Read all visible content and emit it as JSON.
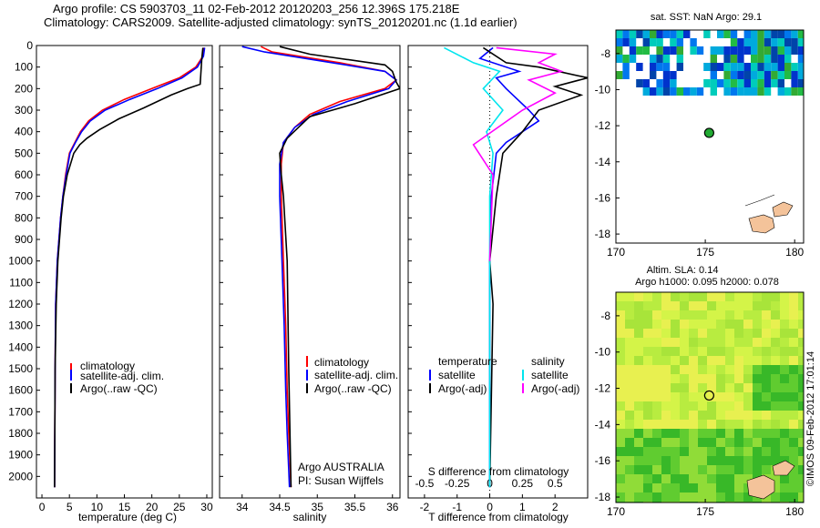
{
  "header": {
    "line1": "Argo profile: CS 5903703_11 02-Feb-2012 20120203_256 12.396S 175.218E",
    "line2": "Climatology: CARS2009. Satellite-adjusted climatology: synTS_20120201.nc (1.1d earlier)"
  },
  "colors": {
    "climatology": "#ff0000",
    "satellite": "#0000ff",
    "argo": "#000000",
    "salinity_satellite": "#00e5ee",
    "salinity_argo": "#ff00ff"
  },
  "labels": {
    "argo_australia": "Argo AUSTRALIA",
    "pi": "PI: Susan Wijffels",
    "legend_temperature": "temperature",
    "legend_salinity": "salinity",
    "sst_title": "sat. SST: NaN Argo: 29.1",
    "sla_title1": "Altim. SLA: 0.14",
    "sla_title2": "Argo h1000: 0.095 h2000: 0.078",
    "imos": "©IMOS 09-Feb-2012 17:01:14"
  },
  "chart_data": [
    {
      "type": "line",
      "xlabel": "temperature (deg C)",
      "xlim": [
        -1,
        31
      ],
      "xticks": [
        "0",
        "5",
        "10",
        "15",
        "20",
        "25",
        "30"
      ],
      "xtick_values": [
        0,
        5,
        10,
        15,
        20,
        25,
        30
      ],
      "ylim": [
        2100,
        0
      ],
      "yticks": [
        "0",
        "100",
        "200",
        "300",
        "400",
        "500",
        "600",
        "700",
        "800",
        "900",
        "1000",
        "1100",
        "1200",
        "1300",
        "1400",
        "1500",
        "1600",
        "1700",
        "1800",
        "1900",
        "2000"
      ],
      "ytick_values": [
        0,
        100,
        200,
        300,
        400,
        500,
        600,
        700,
        800,
        900,
        1000,
        1100,
        1200,
        1300,
        1400,
        1500,
        1600,
        1700,
        1800,
        1900,
        2000
      ],
      "legend": [
        "climatology",
        "satellite-adj. clim.",
        "Argo(..raw -QC)"
      ],
      "series": [
        {
          "name": "climatology",
          "color_key": "climatology",
          "x": [
            29.5,
            29.3,
            28,
            25,
            20,
            15,
            11,
            8.5,
            7,
            6,
            5,
            4.3,
            3.8,
            3.4,
            3.1,
            2.8,
            2.5,
            2.4,
            2.3
          ],
          "y": [
            10,
            50,
            100,
            150,
            200,
            250,
            300,
            350,
            400,
            450,
            500,
            600,
            700,
            800,
            900,
            1000,
            1200,
            1500,
            2050
          ]
        },
        {
          "name": "satellite-adj. clim.",
          "color_key": "satellite",
          "x": [
            29.6,
            29.4,
            28.3,
            25.5,
            21,
            16,
            11.5,
            8.8,
            7.2,
            6.1,
            5.1,
            4.4,
            3.8,
            3.4,
            3.1,
            2.8,
            2.5,
            2.4,
            2.3
          ],
          "y": [
            10,
            50,
            100,
            150,
            200,
            250,
            300,
            350,
            400,
            450,
            500,
            600,
            700,
            800,
            900,
            1000,
            1200,
            1500,
            2050
          ]
        },
        {
          "name": "Argo(..raw -QC)",
          "color_key": "argo",
          "x": [
            29.3,
            29.1,
            28.8,
            26.5,
            23.5,
            18.5,
            14,
            10.5,
            8.2,
            6.9,
            5.8,
            4.6,
            3.9,
            3.5,
            3.2,
            2.9,
            2.6,
            2.4,
            2.3
          ],
          "y": [
            10,
            60,
            180,
            200,
            230,
            290,
            340,
            390,
            430,
            460,
            500,
            600,
            700,
            800,
            900,
            1000,
            1200,
            1500,
            2050
          ]
        }
      ]
    },
    {
      "type": "line",
      "xlabel": "salinity",
      "xlim": [
        33.7,
        36.1
      ],
      "xticks": [
        "34",
        "34.5",
        "35",
        "35.5",
        "36"
      ],
      "xtick_values": [
        34,
        34.5,
        35,
        35.5,
        36
      ],
      "ylim": [
        2100,
        0
      ],
      "legend": [
        "climatology",
        "satellite-adj. clim.",
        "Argo(..raw -QC)"
      ],
      "series": [
        {
          "name": "climatology",
          "color_key": "climatology",
          "x": [
            34.25,
            34.4,
            35.3,
            35.9,
            36.05,
            35.9,
            35.3,
            34.9,
            34.7,
            34.55,
            34.52,
            34.52,
            34.55,
            34.58,
            34.6,
            34.62,
            34.65
          ],
          "y": [
            5,
            30,
            80,
            120,
            160,
            200,
            260,
            320,
            380,
            450,
            550,
            700,
            1000,
            1300,
            1600,
            1800,
            2050
          ]
        },
        {
          "name": "satellite-adj. clim.",
          "color_key": "satellite",
          "x": [
            34.0,
            34.3,
            35.2,
            35.9,
            36.05,
            35.95,
            35.4,
            34.95,
            34.7,
            34.55,
            34.5,
            34.5,
            34.53,
            34.56,
            34.58,
            34.6,
            34.63
          ],
          "y": [
            5,
            30,
            80,
            120,
            160,
            200,
            260,
            320,
            380,
            450,
            550,
            700,
            1000,
            1300,
            1600,
            1800,
            2050
          ]
        },
        {
          "name": "Argo(..raw -QC)",
          "color_key": "argo",
          "x": [
            34.5,
            34.9,
            35.9,
            36.0,
            36.05,
            36.1,
            35.5,
            34.9,
            34.6,
            34.5,
            34.52,
            34.55,
            34.6,
            34.62,
            34.65
          ],
          "y": [
            5,
            40,
            90,
            120,
            170,
            200,
            270,
            330,
            430,
            500,
            600,
            700,
            1000,
            1500,
            2050
          ]
        }
      ]
    },
    {
      "type": "line",
      "xlabel": "T difference from climatology",
      "xlabel2": "S difference from climatology",
      "xlim": [
        -2.5,
        3
      ],
      "xticks": [
        "-2",
        "-1",
        "0",
        "1",
        "2"
      ],
      "xtick_values": [
        -2,
        -1,
        0,
        1,
        2
      ],
      "xticks_top": [
        "-0.5",
        "-0.25",
        "0",
        "0.25",
        "0.5"
      ],
      "xtick_top_values": [
        -2,
        -1,
        0,
        1,
        2
      ],
      "ylim": [
        2100,
        0
      ],
      "legend": [
        "satellite",
        "Argo(-adj)",
        "satellite",
        "Argo(-adj)"
      ],
      "series": [
        {
          "name": "satellite",
          "color_key": "satellite",
          "x": [
            0.1,
            -0.3,
            0.9,
            0.2,
            0.5,
            1.2,
            1.5,
            1.0,
            0.5,
            0.2,
            0.05,
            0.0,
            0.0
          ],
          "y": [
            10,
            60,
            120,
            150,
            200,
            300,
            350,
            400,
            450,
            500,
            700,
            1000,
            2050
          ]
        },
        {
          "name": "Argo(-adj)",
          "color_key": "argo",
          "x": [
            -0.2,
            0.5,
            1.5,
            3.0,
            2.0,
            2.8,
            1.5,
            1.0,
            0.4,
            0.2,
            0.0,
            0.1,
            0.0
          ],
          "y": [
            10,
            80,
            100,
            150,
            190,
            230,
            300,
            400,
            500,
            700,
            1000,
            1200,
            2050
          ]
        },
        {
          "name": "satellite",
          "color_key": "salinity_satellite",
          "x": [
            -1.4,
            -0.5,
            0.3,
            -0.2,
            0.4,
            -0.1,
            0.1,
            0.0,
            0.0
          ],
          "y": [
            10,
            80,
            120,
            200,
            300,
            400,
            500,
            700,
            2050
          ]
        },
        {
          "name": "Argo(-adj)",
          "color_key": "salinity_argo",
          "x": [
            0.2,
            2.0,
            1.5,
            2.2,
            1.2,
            2.0,
            1.0,
            -0.5,
            0.1,
            0.0
          ],
          "y": [
            10,
            40,
            80,
            120,
            160,
            220,
            300,
            460,
            600,
            1000
          ]
        }
      ]
    },
    {
      "type": "heatmap",
      "xlim": [
        170,
        180.5
      ],
      "ylim": [
        -18.5,
        -6.7
      ],
      "xticks": [
        "170",
        "175",
        "180"
      ],
      "yticks": [
        "-8",
        "-10",
        "-12",
        "-14",
        "-16",
        "-18"
      ],
      "marker": {
        "lon": 175.218,
        "lat": -12.396
      }
    },
    {
      "type": "heatmap",
      "xlim": [
        170,
        180.5
      ],
      "ylim": [
        -18.3,
        -6.7
      ],
      "xticks": [
        "170",
        "175",
        "180"
      ],
      "yticks": [
        "-8",
        "-10",
        "-12",
        "-14",
        "-16",
        "-18"
      ],
      "marker": {
        "lon": 175.218,
        "lat": -12.396
      }
    }
  ]
}
